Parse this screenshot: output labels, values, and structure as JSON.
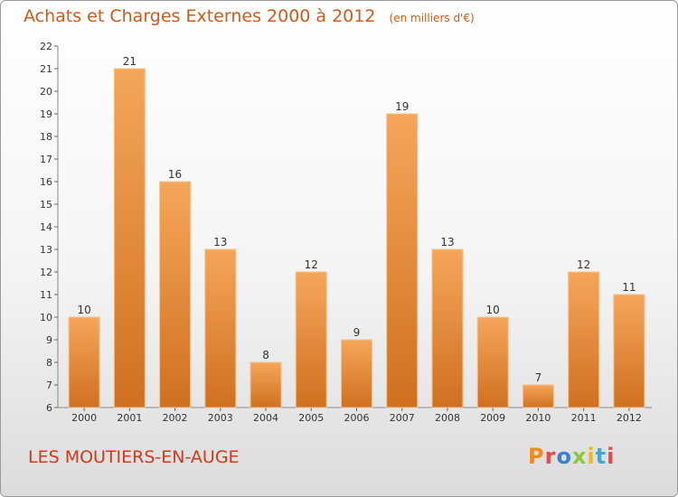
{
  "title": "Achats et Charges Externes 2000 à 2012",
  "unit_label": "(en milliers d'€)",
  "city": "LES MOUTIERS-EN-AUGE",
  "logo": "Proxiti",
  "colors": {
    "title": "#d05a1a",
    "city": "#d03a1a",
    "bar_light": "#f5a65a",
    "bar_dark": "#d0701f",
    "logo": [
      "#f08a1a",
      "#e84a4a",
      "#3a7fd0",
      "#8cc63e",
      "#f0b81a",
      "#3aaad8",
      "#e84a4a"
    ]
  },
  "chart_data": {
    "type": "bar",
    "categories": [
      "2000",
      "2001",
      "2002",
      "2003",
      "2004",
      "2005",
      "2006",
      "2007",
      "2008",
      "2009",
      "2010",
      "2011",
      "2012"
    ],
    "values": [
      10,
      21,
      16,
      13,
      8,
      12,
      9,
      19,
      13,
      10,
      7,
      12,
      11
    ],
    "ylim": [
      6,
      22
    ],
    "yticks": [
      6,
      7,
      8,
      9,
      10,
      11,
      12,
      13,
      14,
      15,
      16,
      17,
      18,
      19,
      20,
      21,
      22
    ],
    "grid": false,
    "data_labels": true
  }
}
